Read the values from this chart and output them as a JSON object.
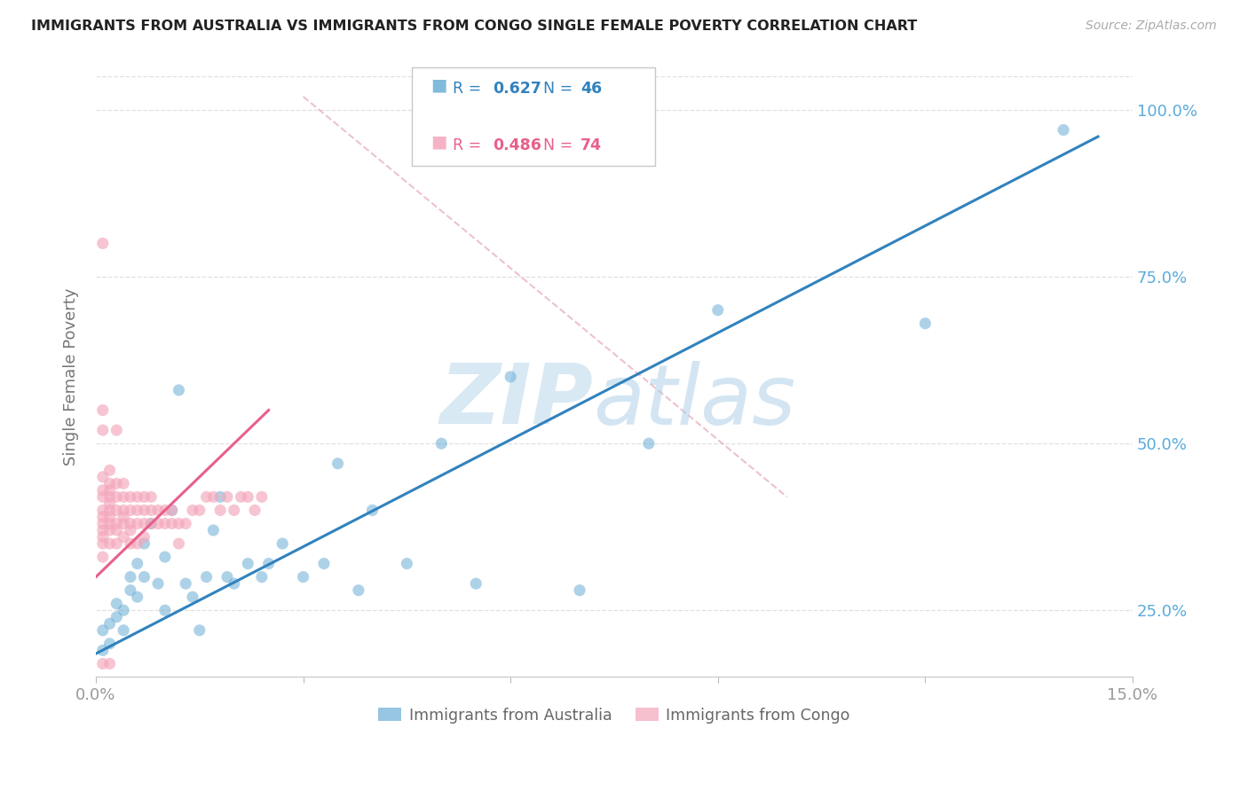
{
  "title": "IMMIGRANTS FROM AUSTRALIA VS IMMIGRANTS FROM CONGO SINGLE FEMALE POVERTY CORRELATION CHART",
  "source": "Source: ZipAtlas.com",
  "ylabel_label": "Single Female Poverty",
  "xlim": [
    0.0,
    0.15
  ],
  "ylim": [
    0.15,
    1.05
  ],
  "yticks": [
    0.25,
    0.5,
    0.75,
    1.0
  ],
  "ytick_labels_right": [
    "25.0%",
    "50.0%",
    "75.0%",
    "100.0%"
  ],
  "xticks": [
    0.0,
    0.03,
    0.06,
    0.09,
    0.12,
    0.15
  ],
  "xtick_labels": [
    "0.0%",
    "",
    "",
    "",
    "",
    "15.0%"
  ],
  "watermark_zip": "ZIP",
  "watermark_atlas": "atlas",
  "australia_R": 0.627,
  "australia_N": 46,
  "congo_R": 0.486,
  "congo_N": 74,
  "australia_color": "#6baed6",
  "congo_color": "#f4a6bb",
  "australia_line_color": "#3182bd",
  "congo_line_color": "#e8608a",
  "diag_line_color": "#e8b4c0",
  "background_color": "#ffffff",
  "grid_color": "#e0e0e0",
  "title_color": "#222222",
  "right_axis_color": "#5aabdb",
  "legend_R_australia_color": "#3182bd",
  "legend_R_congo_color": "#e8608a",
  "legend_box_color": "#dddddd",
  "bottom_legend_color": "#666666",
  "aus_line_x0": 0.0,
  "aus_line_y0": 0.185,
  "aus_line_x1": 0.145,
  "aus_line_y1": 0.96,
  "congo_line_x0": 0.0,
  "congo_line_y0": 0.3,
  "congo_line_x1": 0.025,
  "congo_line_y1": 0.55,
  "diag_line_x0": 0.03,
  "diag_line_y0": 1.02,
  "diag_line_x1": 0.1,
  "diag_line_y1": 0.42,
  "australia_x": [
    0.001,
    0.001,
    0.002,
    0.002,
    0.003,
    0.003,
    0.004,
    0.004,
    0.005,
    0.005,
    0.006,
    0.006,
    0.007,
    0.007,
    0.008,
    0.009,
    0.01,
    0.01,
    0.011,
    0.012,
    0.013,
    0.014,
    0.015,
    0.016,
    0.017,
    0.018,
    0.019,
    0.02,
    0.022,
    0.024,
    0.025,
    0.027,
    0.03,
    0.033,
    0.035,
    0.038,
    0.04,
    0.045,
    0.05,
    0.055,
    0.06,
    0.07,
    0.08,
    0.09,
    0.12,
    0.14
  ],
  "australia_y": [
    0.19,
    0.22,
    0.2,
    0.23,
    0.24,
    0.26,
    0.22,
    0.25,
    0.28,
    0.3,
    0.32,
    0.27,
    0.35,
    0.3,
    0.38,
    0.29,
    0.25,
    0.33,
    0.4,
    0.58,
    0.29,
    0.27,
    0.22,
    0.3,
    0.37,
    0.42,
    0.3,
    0.29,
    0.32,
    0.3,
    0.32,
    0.35,
    0.3,
    0.32,
    0.47,
    0.28,
    0.4,
    0.32,
    0.5,
    0.29,
    0.6,
    0.28,
    0.5,
    0.7,
    0.68,
    0.97
  ],
  "congo_x": [
    0.001,
    0.001,
    0.001,
    0.001,
    0.001,
    0.001,
    0.001,
    0.001,
    0.001,
    0.001,
    0.002,
    0.002,
    0.002,
    0.002,
    0.002,
    0.002,
    0.002,
    0.002,
    0.002,
    0.002,
    0.003,
    0.003,
    0.003,
    0.003,
    0.003,
    0.003,
    0.004,
    0.004,
    0.004,
    0.004,
    0.004,
    0.004,
    0.005,
    0.005,
    0.005,
    0.005,
    0.005,
    0.006,
    0.006,
    0.006,
    0.006,
    0.007,
    0.007,
    0.007,
    0.007,
    0.008,
    0.008,
    0.008,
    0.009,
    0.009,
    0.01,
    0.01,
    0.011,
    0.011,
    0.012,
    0.012,
    0.013,
    0.014,
    0.015,
    0.016,
    0.017,
    0.018,
    0.019,
    0.02,
    0.021,
    0.022,
    0.023,
    0.024,
    0.001,
    0.001,
    0.001,
    0.001,
    0.002,
    0.003
  ],
  "congo_y": [
    0.35,
    0.38,
    0.4,
    0.42,
    0.43,
    0.45,
    0.33,
    0.36,
    0.37,
    0.39,
    0.38,
    0.4,
    0.42,
    0.44,
    0.46,
    0.35,
    0.37,
    0.39,
    0.41,
    0.43,
    0.38,
    0.4,
    0.42,
    0.44,
    0.35,
    0.37,
    0.38,
    0.4,
    0.42,
    0.44,
    0.36,
    0.39,
    0.38,
    0.4,
    0.42,
    0.35,
    0.37,
    0.38,
    0.4,
    0.42,
    0.35,
    0.38,
    0.4,
    0.42,
    0.36,
    0.38,
    0.4,
    0.42,
    0.38,
    0.4,
    0.38,
    0.4,
    0.38,
    0.4,
    0.35,
    0.38,
    0.38,
    0.4,
    0.4,
    0.42,
    0.42,
    0.4,
    0.42,
    0.4,
    0.42,
    0.42,
    0.4,
    0.42,
    0.52,
    0.55,
    0.8,
    0.17,
    0.17,
    0.52
  ]
}
